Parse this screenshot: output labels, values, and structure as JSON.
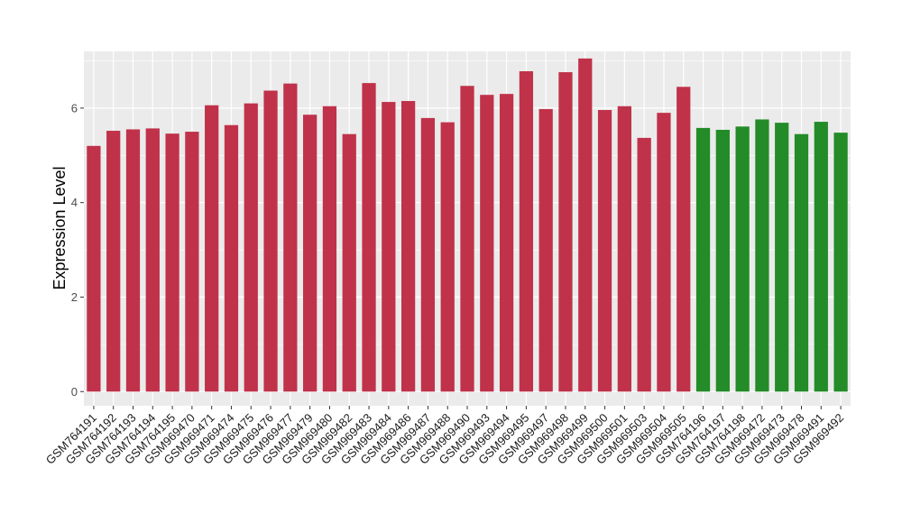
{
  "chart_data": {
    "type": "bar",
    "title": "",
    "xlabel": "",
    "ylabel": "Expression Level",
    "ylim": [
      -0.3,
      7.2
    ],
    "yticks": [
      0,
      2,
      4,
      6
    ],
    "grid": true,
    "legend": "none",
    "categories": [
      "GSM764191",
      "GSM764192",
      "GSM764193",
      "GSM764194",
      "GSM764195",
      "GSM969470",
      "GSM969471",
      "GSM969474",
      "GSM969475",
      "GSM969476",
      "GSM969477",
      "GSM969479",
      "GSM969480",
      "GSM969482",
      "GSM969483",
      "GSM969484",
      "GSM969486",
      "GSM969487",
      "GSM969488",
      "GSM969490",
      "GSM969493",
      "GSM969494",
      "GSM969495",
      "GSM969497",
      "GSM969498",
      "GSM969499",
      "GSM969500",
      "GSM969501",
      "GSM969503",
      "GSM969504",
      "GSM969505",
      "GSM764196",
      "GSM764197",
      "GSM764198",
      "GSM969472",
      "GSM969473",
      "GSM969478",
      "GSM969491",
      "GSM969492"
    ],
    "values": [
      5.2,
      5.52,
      5.55,
      5.57,
      5.46,
      5.5,
      6.06,
      5.64,
      6.1,
      6.37,
      6.52,
      5.86,
      6.04,
      5.45,
      6.53,
      6.13,
      6.15,
      5.79,
      5.7,
      6.47,
      6.28,
      6.3,
      6.78,
      5.98,
      6.76,
      7.05,
      5.96,
      6.04,
      5.37,
      5.9,
      6.45,
      5.58,
      5.54,
      5.61,
      5.76,
      5.69,
      5.45,
      5.71,
      5.48
    ],
    "bar_colors": [
      "#C0324A",
      "#C0324A",
      "#C0324A",
      "#C0324A",
      "#C0324A",
      "#C0324A",
      "#C0324A",
      "#C0324A",
      "#C0324A",
      "#C0324A",
      "#C0324A",
      "#C0324A",
      "#C0324A",
      "#C0324A",
      "#C0324A",
      "#C0324A",
      "#C0324A",
      "#C0324A",
      "#C0324A",
      "#C0324A",
      "#C0324A",
      "#C0324A",
      "#C0324A",
      "#C0324A",
      "#C0324A",
      "#C0324A",
      "#C0324A",
      "#C0324A",
      "#C0324A",
      "#C0324A",
      "#C0324A",
      "#238B27",
      "#238B27",
      "#238B27",
      "#238B27",
      "#238B27",
      "#238B27",
      "#238B27",
      "#238B27"
    ],
    "panel_color": "#EBEBEB",
    "grid_color": "#FFFFFF"
  }
}
